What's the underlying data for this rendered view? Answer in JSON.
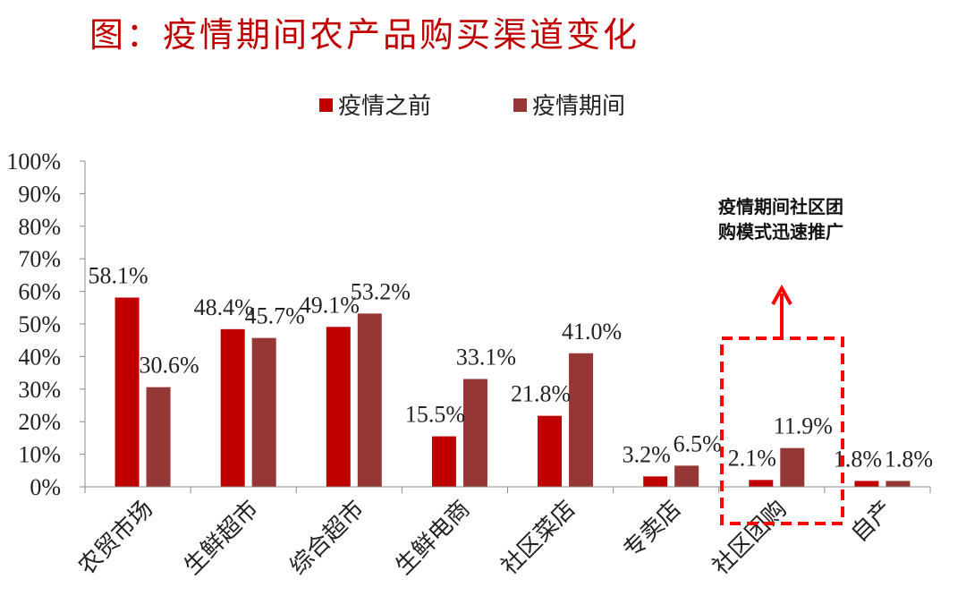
{
  "chart_data": {
    "type": "bar",
    "title": "图：疫情期间农产品购买渠道变化",
    "categories": [
      "农贸市场",
      "生鲜超市",
      "综合超市",
      "生鲜电商",
      "社区菜店",
      "专卖店",
      "社区团购",
      "自产"
    ],
    "series": [
      {
        "name": "疫情之前",
        "values": [
          58.1,
          48.4,
          49.1,
          15.5,
          21.8,
          3.2,
          2.1,
          1.8
        ],
        "color": "#c00000"
      },
      {
        "name": "疫情期间",
        "values": [
          30.6,
          45.7,
          53.2,
          33.1,
          41.0,
          6.5,
          11.9,
          1.8
        ],
        "color": "#953735"
      }
    ],
    "data_labels": [
      [
        "58.1%",
        "48.4%",
        "49.1%",
        "15.5%",
        "21.8%",
        "3.2%",
        "2.1%",
        "1.8%"
      ],
      [
        "30.6%",
        "45.7%",
        "53.2%",
        "33.1%",
        "41.0%",
        "6.5%",
        "11.9%",
        "1.8%"
      ]
    ],
    "ylim": [
      0,
      100
    ],
    "yticks": [
      "0%",
      "10%",
      "20%",
      "30%",
      "40%",
      "50%",
      "60%",
      "70%",
      "80%",
      "90%",
      "100%"
    ],
    "xlabel": "",
    "ylabel": "",
    "grid": false,
    "legend_position": "top",
    "annotation": {
      "lines": [
        "疫情期间社区团",
        "购模式迅速推广"
      ],
      "highlight_category": "社区团购",
      "color": "#ff0000"
    }
  }
}
